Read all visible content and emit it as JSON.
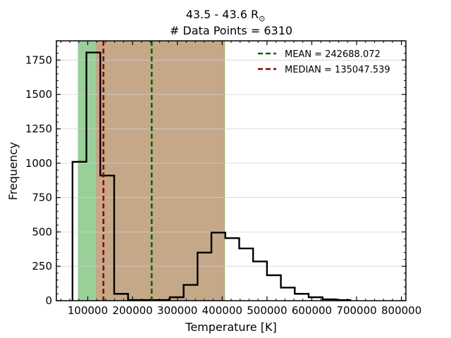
{
  "chart_data": {
    "type": "histogram",
    "title_line1": "43.5 - 43.6 R",
    "title_symbol": "⊙",
    "title_line2": "# Data Points = 6310",
    "xlabel": "Temperature [K]",
    "ylabel": "Frequency",
    "xlim": [
      30000,
      810000
    ],
    "ylim": [
      0,
      1890
    ],
    "x_ticks": [
      100000,
      200000,
      300000,
      400000,
      500000,
      600000,
      700000,
      800000
    ],
    "x_tick_labels": [
      "100000",
      "200000",
      "300000",
      "400000",
      "500000",
      "600000",
      "700000",
      "800000"
    ],
    "y_ticks": [
      0,
      250,
      500,
      750,
      1000,
      1250,
      1500,
      1750
    ],
    "y_tick_labels": [
      "0",
      "250",
      "500",
      "750",
      "1000",
      "1250",
      "1500",
      "1750"
    ],
    "grid": "horizontal",
    "bin_edges": [
      66000,
      97000,
      128000,
      159000,
      190000,
      221000,
      252000,
      283000,
      314000,
      345000,
      376000,
      407000,
      438000,
      469000,
      500000,
      531000,
      562000,
      593000,
      624000,
      655000,
      686000
    ],
    "counts": [
      1010,
      1805,
      910,
      50,
      5,
      5,
      5,
      25,
      115,
      350,
      495,
      455,
      380,
      285,
      185,
      95,
      50,
      25,
      10,
      5
    ],
    "shaded_regions": [
      {
        "from": 78000,
        "to": 118000,
        "color": "#98d098"
      },
      {
        "from": 118000,
        "to": 405000,
        "color": "#c4a888"
      }
    ],
    "shade_edge_color": "#a0b478",
    "vlines": [
      {
        "name": "MEAN = 242688.072",
        "value": 242688.072,
        "color": "#006400"
      },
      {
        "name": "MEDIAN = 135047.539",
        "value": 135047.539,
        "color": "#8b0000"
      }
    ],
    "legend_position": "top-right"
  }
}
